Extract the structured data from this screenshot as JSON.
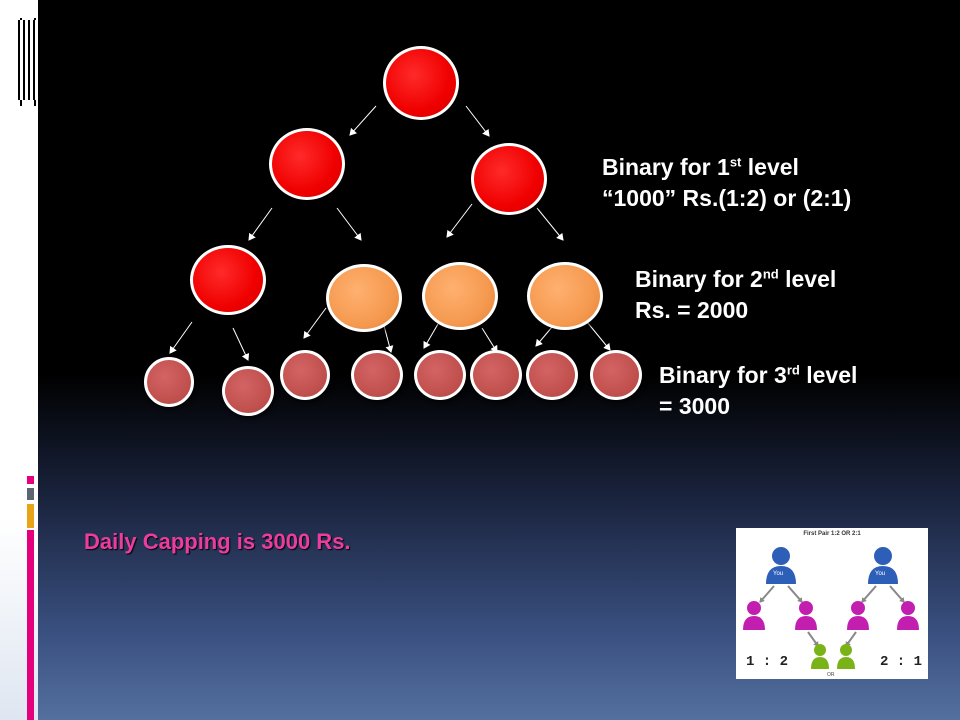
{
  "labels": {
    "level1": {
      "prefix": "Binary for 1",
      "sup": "st",
      "suffix": " level",
      "line2": "“1000” Rs.(1:2) or (2:1)"
    },
    "level2": {
      "prefix": "Binary for 2",
      "sup": "nd",
      "suffix": " level",
      "line2": "Rs. = 2000"
    },
    "level3": {
      "prefix": "Binary for 3",
      "sup": "rd",
      "suffix": " level",
      "line2": "= 3000"
    }
  },
  "capping": "Daily Capping is 3000 Rs.",
  "thumbnail": {
    "title": "First Pair 1:2 OR 2:1",
    "you_label": "You",
    "left_ratio": "1 : 2",
    "right_ratio": "2 : 1",
    "or_label": "OR"
  },
  "colors": {
    "red_node": "#f00000",
    "orange_node": "#f59a50",
    "leaf_node": "#c0504d",
    "capping_text": "#ec3ca0",
    "accent_pink": "#e4007c",
    "accent_gold": "#e8a317"
  }
}
